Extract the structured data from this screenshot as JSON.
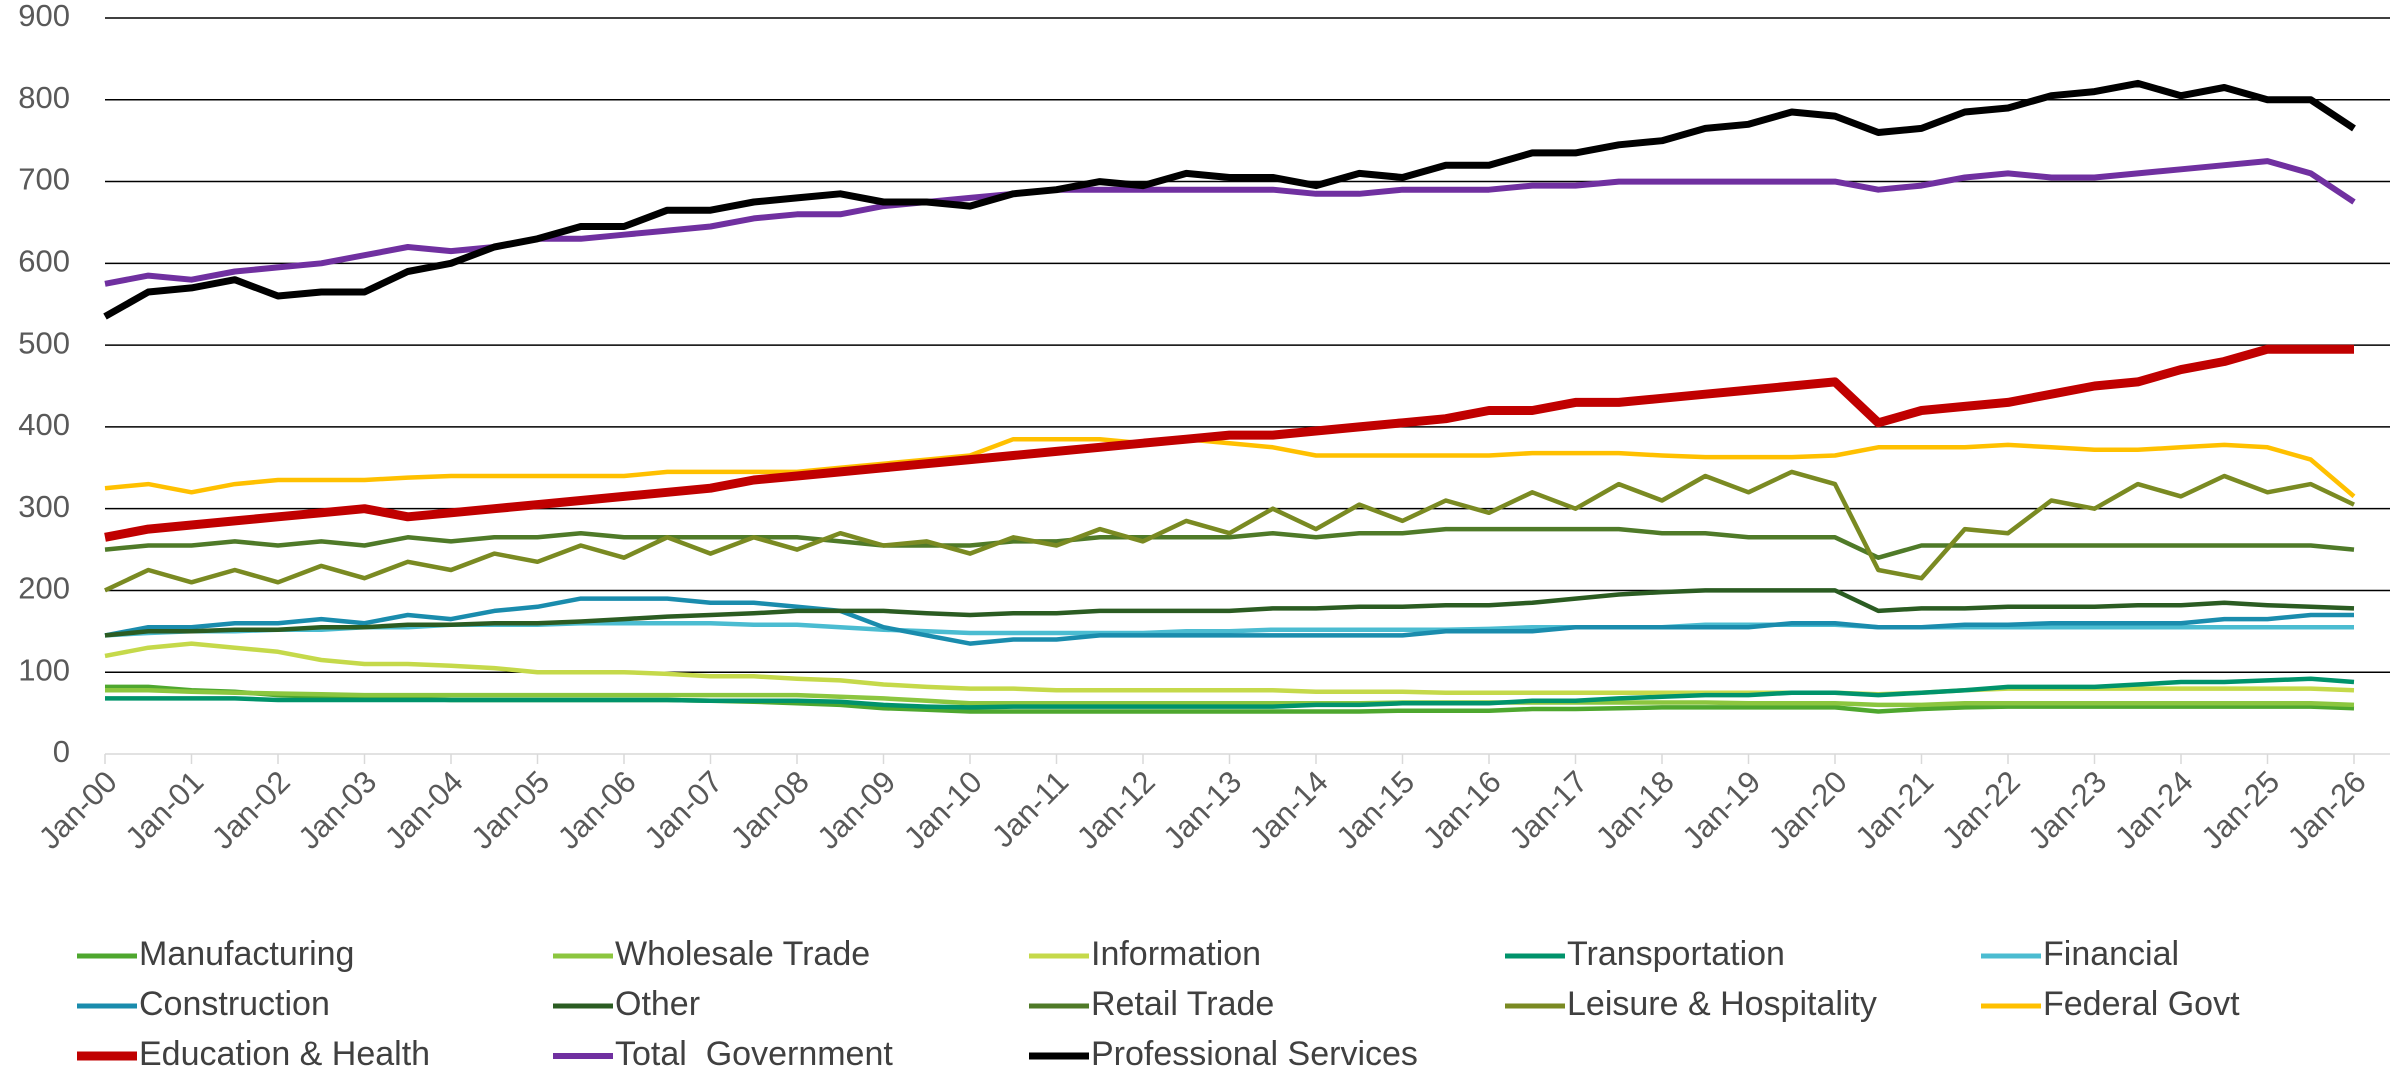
{
  "chart_data": {
    "type": "line",
    "categories": [
      "Jan-00",
      null,
      "Jan-01",
      null,
      "Jan-02",
      null,
      "Jan-03",
      null,
      "Jan-04",
      null,
      "Jan-05",
      null,
      "Jan-06",
      null,
      "Jan-07",
      null,
      "Jan-08",
      null,
      "Jan-09",
      null,
      "Jan-10",
      null,
      "Jan-11",
      null,
      "Jan-12",
      null,
      "Jan-13",
      null,
      "Jan-14",
      null,
      "Jan-15",
      null,
      "Jan-16",
      null,
      "Jan-17",
      null,
      "Jan-18",
      null,
      "Jan-19",
      null,
      "Jan-20",
      null,
      "Jan-21",
      null,
      "Jan-22",
      null,
      "Jan-23",
      null,
      "Jan-24",
      null,
      "Jan-25",
      null,
      "Jan-26"
    ],
    "ylim": [
      0,
      900
    ],
    "yticks": [
      0,
      100,
      200,
      300,
      400,
      500,
      600,
      700,
      800,
      900
    ],
    "grid": true,
    "series": [
      {
        "name": "Manufacturing",
        "color": "#4ea72e",
        "values": [
          82,
          82,
          78,
          76,
          72,
          70,
          68,
          68,
          66,
          66,
          66,
          66,
          66,
          66,
          65,
          64,
          62,
          60,
          56,
          54,
          52,
          52,
          52,
          52,
          52,
          52,
          52,
          52,
          52,
          52,
          53,
          53,
          53,
          55,
          55,
          56,
          57,
          57,
          57,
          57,
          57,
          52,
          55,
          57,
          58,
          58,
          58,
          58,
          58,
          58,
          58,
          58,
          56
        ]
      },
      {
        "name": "Wholesale Trade",
        "color": "#8cc63f",
        "values": [
          78,
          78,
          76,
          75,
          74,
          73,
          72,
          72,
          72,
          72,
          72,
          72,
          72,
          72,
          72,
          72,
          72,
          70,
          68,
          65,
          62,
          62,
          62,
          62,
          62,
          62,
          62,
          62,
          62,
          62,
          63,
          63,
          63,
          63,
          63,
          63,
          63,
          63,
          62,
          62,
          62,
          60,
          60,
          62,
          62,
          62,
          62,
          62,
          62,
          62,
          62,
          62,
          60
        ]
      },
      {
        "name": "Information",
        "color": "#c5d94a",
        "values": [
          120,
          130,
          135,
          130,
          125,
          115,
          110,
          110,
          108,
          105,
          100,
          100,
          100,
          98,
          95,
          95,
          92,
          90,
          85,
          82,
          80,
          80,
          78,
          78,
          78,
          78,
          78,
          78,
          76,
          76,
          76,
          75,
          75,
          75,
          75,
          75,
          75,
          75,
          75,
          75,
          75,
          73,
          75,
          78,
          80,
          80,
          80,
          80,
          80,
          80,
          80,
          80,
          78
        ]
      },
      {
        "name": "Transportation",
        "color": "#00936b",
        "values": [
          68,
          68,
          68,
          68,
          66,
          66,
          66,
          66,
          66,
          66,
          66,
          66,
          66,
          66,
          65,
          65,
          65,
          64,
          60,
          58,
          57,
          58,
          58,
          58,
          58,
          58,
          58,
          58,
          60,
          60,
          62,
          62,
          62,
          65,
          65,
          68,
          70,
          72,
          72,
          75,
          75,
          72,
          75,
          78,
          82,
          82,
          82,
          85,
          88,
          88,
          90,
          92,
          88
        ]
      },
      {
        "name": "Financial",
        "color": "#4bbcd1",
        "values": [
          145,
          148,
          150,
          150,
          152,
          152,
          155,
          155,
          158,
          158,
          158,
          160,
          160,
          160,
          160,
          158,
          158,
          155,
          152,
          150,
          148,
          148,
          148,
          148,
          148,
          150,
          150,
          152,
          152,
          152,
          152,
          152,
          153,
          155,
          155,
          155,
          155,
          158,
          158,
          158,
          158,
          155,
          155,
          155,
          155,
          155,
          155,
          155,
          155,
          155,
          155,
          155,
          155
        ]
      },
      {
        "name": "Construction",
        "color": "#1a8cad",
        "values": [
          145,
          155,
          155,
          160,
          160,
          165,
          160,
          170,
          165,
          175,
          180,
          190,
          190,
          190,
          185,
          185,
          180,
          175,
          155,
          145,
          135,
          140,
          140,
          145,
          145,
          145,
          145,
          145,
          145,
          145,
          145,
          150,
          150,
          150,
          155,
          155,
          155,
          155,
          155,
          160,
          160,
          155,
          155,
          158,
          158,
          160,
          160,
          160,
          160,
          165,
          165,
          170,
          170
        ]
      },
      {
        "name": "Other",
        "color": "#2b5c22",
        "values": [
          145,
          150,
          150,
          152,
          152,
          155,
          155,
          158,
          158,
          160,
          160,
          162,
          165,
          168,
          170,
          172,
          175,
          175,
          175,
          172,
          170,
          172,
          172,
          175,
          175,
          175,
          175,
          178,
          178,
          180,
          180,
          182,
          182,
          185,
          190,
          195,
          198,
          200,
          200,
          200,
          200,
          175,
          178,
          178,
          180,
          180,
          180,
          182,
          182,
          185,
          182,
          180,
          178
        ]
      },
      {
        "name": "Retail Trade",
        "color": "#4f7a28",
        "values": [
          250,
          255,
          255,
          260,
          255,
          260,
          255,
          265,
          260,
          265,
          265,
          270,
          265,
          265,
          265,
          265,
          265,
          260,
          255,
          255,
          255,
          260,
          260,
          265,
          265,
          265,
          265,
          270,
          265,
          270,
          270,
          275,
          275,
          275,
          275,
          275,
          270,
          270,
          265,
          265,
          265,
          240,
          255,
          255,
          255,
          255,
          255,
          255,
          255,
          255,
          255,
          255,
          250
        ]
      },
      {
        "name": "Leisure & Hospitality",
        "color": "#7a8a22",
        "values": [
          200,
          225,
          210,
          225,
          210,
          230,
          215,
          235,
          225,
          245,
          235,
          255,
          240,
          265,
          245,
          265,
          250,
          270,
          255,
          260,
          245,
          265,
          255,
          275,
          260,
          285,
          270,
          300,
          275,
          305,
          285,
          310,
          295,
          320,
          300,
          330,
          310,
          340,
          320,
          345,
          330,
          225,
          215,
          275,
          270,
          310,
          300,
          330,
          315,
          340,
          320,
          330,
          305
        ]
      },
      {
        "name": "Federal Govt",
        "color": "#ffc000",
        "values": [
          325,
          330,
          320,
          330,
          335,
          335,
          335,
          338,
          340,
          340,
          340,
          340,
          340,
          345,
          345,
          345,
          345,
          350,
          355,
          360,
          365,
          385,
          385,
          385,
          380,
          385,
          380,
          375,
          365,
          365,
          365,
          365,
          365,
          368,
          368,
          368,
          365,
          363,
          363,
          363,
          365,
          375,
          375,
          375,
          378,
          375,
          372,
          372,
          375,
          378,
          375,
          360,
          315
        ]
      },
      {
        "name": "Education & Health",
        "color": "#c00000",
        "values": [
          265,
          275,
          280,
          285,
          290,
          295,
          300,
          290,
          295,
          300,
          305,
          310,
          315,
          320,
          325,
          335,
          340,
          345,
          350,
          355,
          360,
          365,
          370,
          375,
          380,
          385,
          390,
          390,
          395,
          400,
          405,
          410,
          420,
          420,
          430,
          430,
          435,
          440,
          445,
          450,
          455,
          405,
          420,
          425,
          430,
          440,
          450,
          455,
          470,
          480,
          495,
          495,
          495
        ]
      },
      {
        "name": "Total_Government",
        "color": "#7030a0",
        "values": [
          575,
          585,
          580,
          590,
          595,
          600,
          610,
          620,
          615,
          620,
          630,
          630,
          635,
          640,
          645,
          655,
          660,
          660,
          670,
          675,
          680,
          685,
          690,
          690,
          690,
          690,
          690,
          690,
          685,
          685,
          690,
          690,
          690,
          695,
          695,
          700,
          700,
          700,
          700,
          700,
          700,
          690,
          695,
          705,
          710,
          705,
          705,
          710,
          715,
          720,
          725,
          710,
          675
        ]
      },
      {
        "name": "Professional Services",
        "color": "#000000",
        "values": [
          535,
          565,
          570,
          580,
          560,
          565,
          565,
          590,
          600,
          620,
          630,
          645,
          645,
          665,
          665,
          675,
          680,
          685,
          675,
          675,
          670,
          685,
          690,
          700,
          695,
          710,
          705,
          705,
          695,
          710,
          705,
          720,
          720,
          735,
          735,
          745,
          750,
          765,
          770,
          785,
          780,
          760,
          765,
          785,
          790,
          805,
          810,
          820,
          805,
          815,
          800,
          800,
          765
        ]
      }
    ]
  }
}
